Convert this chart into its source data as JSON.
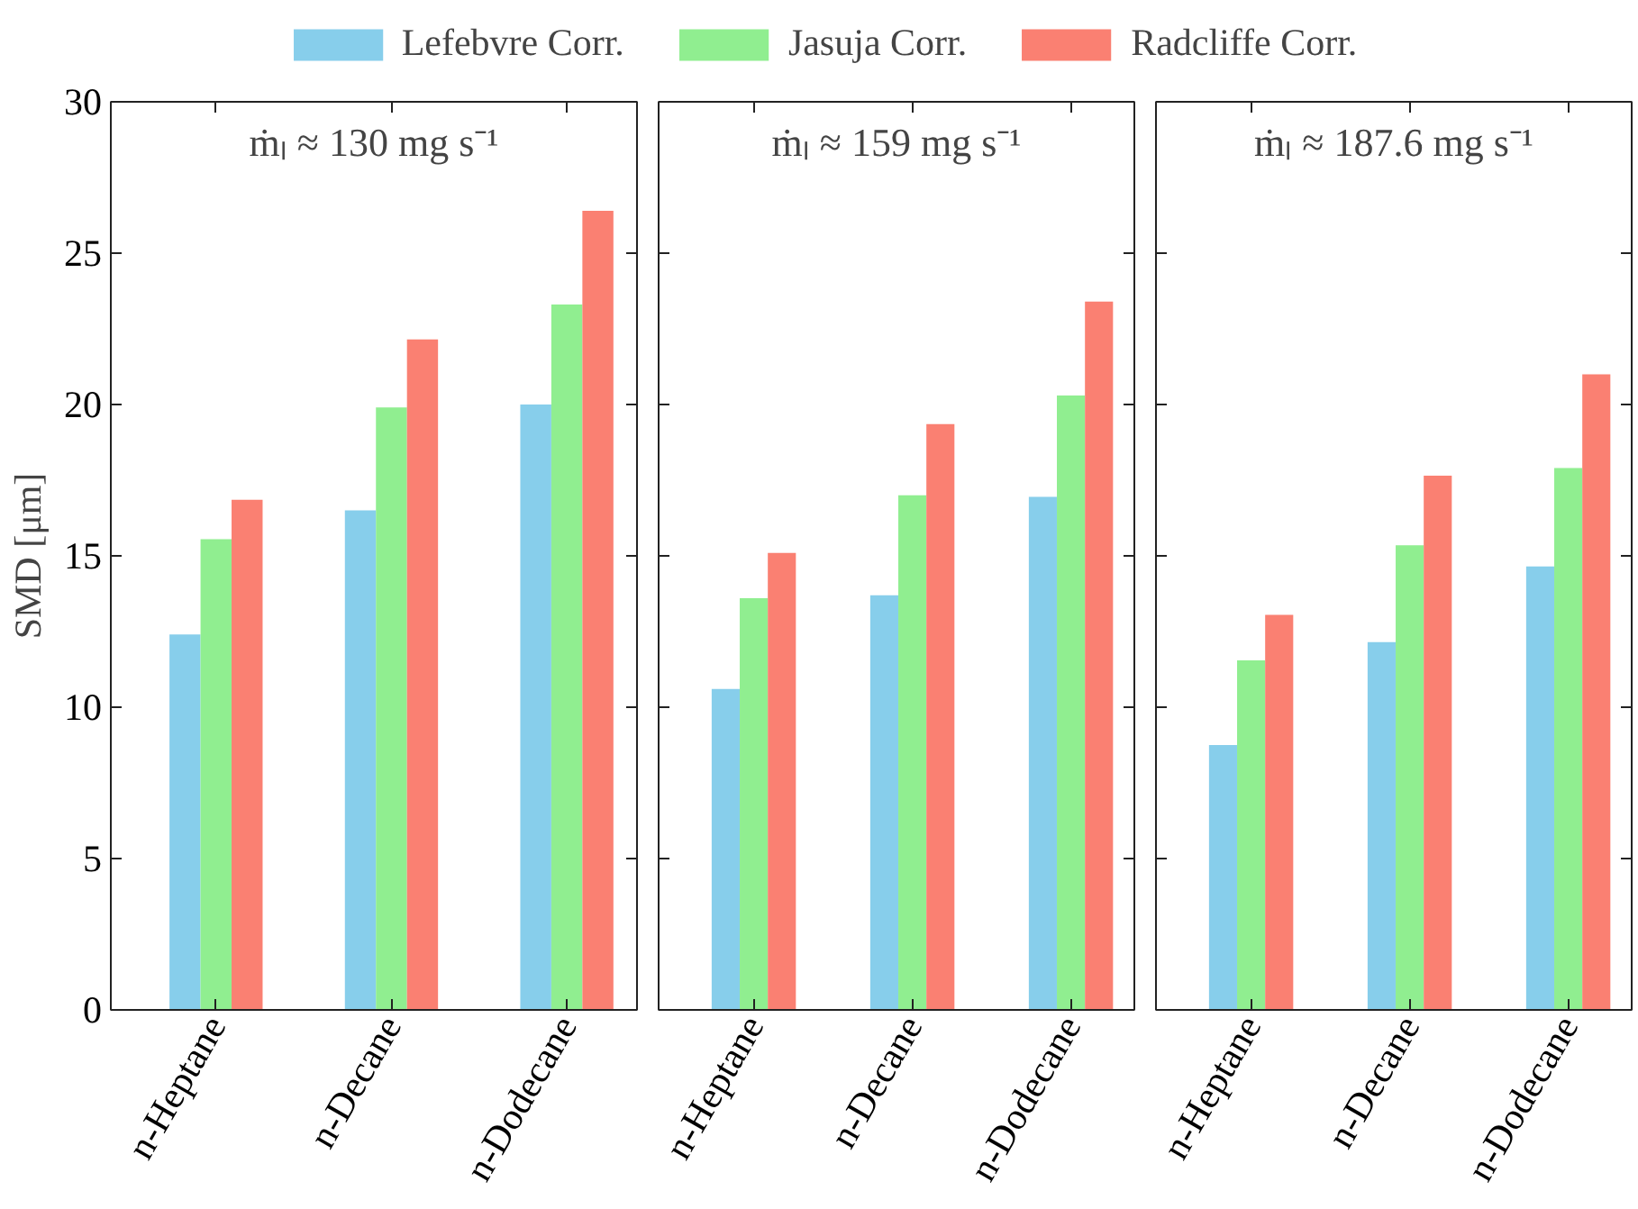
{
  "chart_data": [
    {
      "type": "bar",
      "title": "ṁₗ ≈ 130 mg s⁻¹",
      "ylabel": "SMD [μm]",
      "categories": [
        "n-Heptane",
        "n-Decane",
        "n-Dodecane"
      ],
      "series": [
        {
          "name": "Lefebvre Corr.",
          "color": "#87ceeb",
          "values": [
            12.4,
            16.5,
            20.0
          ]
        },
        {
          "name": "Jasuja Corr.",
          "color": "#90ee90",
          "values": [
            15.55,
            19.9,
            23.3
          ]
        },
        {
          "name": "Radcliffe Corr.",
          "color": "#fa8072",
          "values": [
            16.85,
            22.15,
            26.4
          ]
        }
      ],
      "ylim": [
        0,
        30
      ],
      "yticks": [
        0,
        5,
        10,
        15,
        20,
        25,
        30
      ],
      "legend": "top"
    },
    {
      "type": "bar",
      "title": "ṁₗ ≈ 159 mg s⁻¹",
      "categories": [
        "n-Heptane",
        "n-Decane",
        "n-Dodecane"
      ],
      "series": [
        {
          "color": "#87ceeb",
          "values": [
            10.6,
            13.7,
            16.95
          ]
        },
        {
          "color": "#90ee90",
          "values": [
            13.6,
            17.0,
            20.3
          ]
        },
        {
          "color": "#fa8072",
          "values": [
            15.1,
            19.35,
            23.4
          ]
        }
      ],
      "ylim": [
        0,
        30
      ],
      "yticks": [
        0,
        5,
        10,
        15,
        20,
        25,
        30
      ],
      "tick_labels": "x"
    },
    {
      "type": "bar",
      "title": "ṁₗ ≈ 187.6 mg s⁻¹",
      "categories": [
        "n-Heptane",
        "n-Decane",
        "n-Dodecane"
      ],
      "series": [
        {
          "color": "#87ceeb",
          "values": [
            8.75,
            12.15,
            14.65
          ]
        },
        {
          "color": "#90ee90",
          "values": [
            11.55,
            15.35,
            17.9
          ]
        },
        {
          "color": "#fa8072",
          "values": [
            13.05,
            17.65,
            21.0
          ]
        }
      ],
      "ylim": [
        0,
        30
      ],
      "yticks": [
        0,
        5,
        10,
        15,
        20,
        25,
        30
      ],
      "tick_labels": "x"
    }
  ]
}
